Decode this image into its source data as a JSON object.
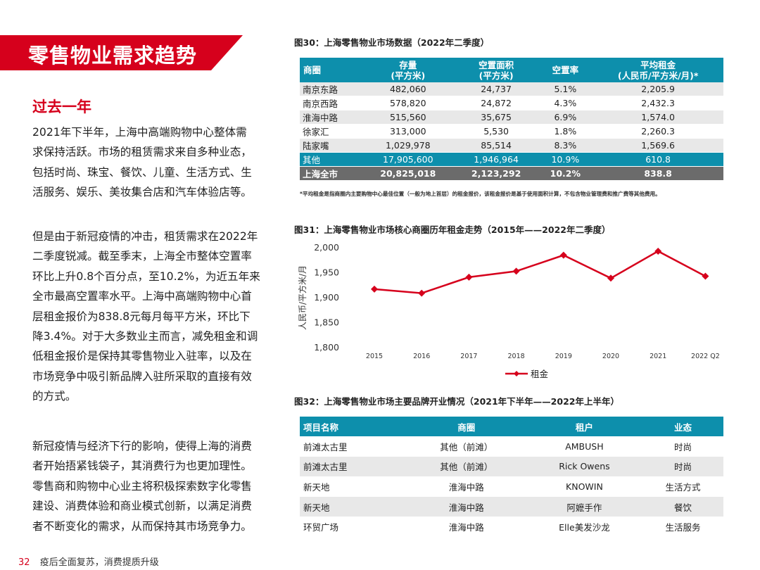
{
  "banner": {
    "title": "零售物业需求趋势"
  },
  "left": {
    "heading": "过去一年",
    "para1": [
      "2021年下半年，上海中高端购物中心整体需",
      "求保持活跃。市场的租赁需求来自多种业态，",
      "包括时尚、珠宝、餐饮、儿童、生活方式、生",
      "活服务、娱乐、美妆集合店和汽车体验店等。"
    ],
    "para2": [
      "但是由于新冠疫情的冲击，租赁需求在2022年",
      "二季度锐减。截至季末，上海全市整体空置率",
      "环比上升0.8个百分点，至10.2%，为近五年来",
      "全市最高空置率水平。上海中高端购物中心首",
      "层租金报价为838.8元每月每平方米，环比下",
      "降3.4%。对于大多数业主而言，减免租金和调",
      "低租金报价是保持其零售物业入驻率，以及在",
      "市场竞争中吸引新品牌入驻所采取的直接有效",
      "的方式。"
    ],
    "para3": [
      "新冠疫情与经济下行的影响，使得上海的消费",
      "者开始捂紧钱袋子，其消费行为也更加理性。",
      "零售商和购物中心业主将积极探索数字化零售",
      "建设、消费体验和商业模式创新，以满足消费",
      "者不断变化的需求，从而保持其市场竞争力。"
    ]
  },
  "fig30": {
    "title": "图30：上海零售物业市场数据（2022年二季度）",
    "headers": [
      "商圈",
      "存量\n(平方米)",
      "空置面积\n(平方米)",
      "空置率",
      "平均租金\n(人民币/平方米/月)*"
    ],
    "rows": [
      [
        "南京东路",
        "482,060",
        "24,737",
        "5.1%",
        "2,205.9"
      ],
      [
        "南京西路",
        "578,820",
        "24,872",
        "4.3%",
        "2,432.3"
      ],
      [
        "淮海中路",
        "515,560",
        "35,675",
        "6.9%",
        "1,574.0"
      ],
      [
        "徐家汇",
        "313,000",
        "5,530",
        "1.8%",
        "2,260.3"
      ],
      [
        "陆家嘴",
        "1,029,978",
        "85,514",
        "8.3%",
        "1,569.6"
      ],
      [
        "其他",
        "17,905,600",
        "1,946,964",
        "10.9%",
        "610.8"
      ],
      [
        "上海全市",
        "20,825,018",
        "2,123,292",
        "10.2%",
        "838.8"
      ]
    ],
    "footnote": "*平均租金是指商圈内主要购物中心最佳位置（一般为地上首层）的租金报价，该租金报价是基于使用面积计算，不包含物业管理费和推广费等其他费用。"
  },
  "fig31": {
    "title": "图31：上海零售物业市场核心商圈历年租金走势（2015年——2022年二季度）"
  },
  "chart_data": {
    "type": "line",
    "categories": [
      "2015",
      "2016",
      "2017",
      "2018",
      "2019",
      "2020",
      "2021",
      "2022 Q2"
    ],
    "series": [
      {
        "name": "租金",
        "values": [
          1917,
          1909,
          1941,
          1953,
          1985,
          1939,
          1993,
          1943
        ],
        "color": "#d6001c"
      }
    ],
    "ylabel": "人民币/平方米/月",
    "ylim": [
      1800,
      2000
    ],
    "yticks": [
      1800,
      1850,
      1900,
      1950,
      2000
    ],
    "ytick_labels": [
      "1,800",
      "1,850",
      "1,900",
      "1,950",
      "2,000"
    ],
    "legend": "bottom",
    "grid": false
  },
  "fig32": {
    "title": "图32：上海零售物业市场主要品牌开业情况（2021年下半年——2022年上半年）",
    "headers": [
      "项目名称",
      "商圈",
      "租户",
      "业态"
    ],
    "rows": [
      [
        "前滩太古里",
        "其他（前滩）",
        "AMBUSH",
        "时尚"
      ],
      [
        "前滩太古里",
        "其他（前滩）",
        "Rick Owens",
        "时尚"
      ],
      [
        "新天地",
        "淮海中路",
        "KNOWIN",
        "生活方式"
      ],
      [
        "新天地",
        "淮海中路",
        "阿嬷手作",
        "餐饮"
      ],
      [
        "环贸广场",
        "淮海中路",
        "Elle美发沙龙",
        "生活服务"
      ]
    ]
  },
  "footer": {
    "page_number": "32",
    "text": "疫后全面复苏，消费提质升级"
  }
}
